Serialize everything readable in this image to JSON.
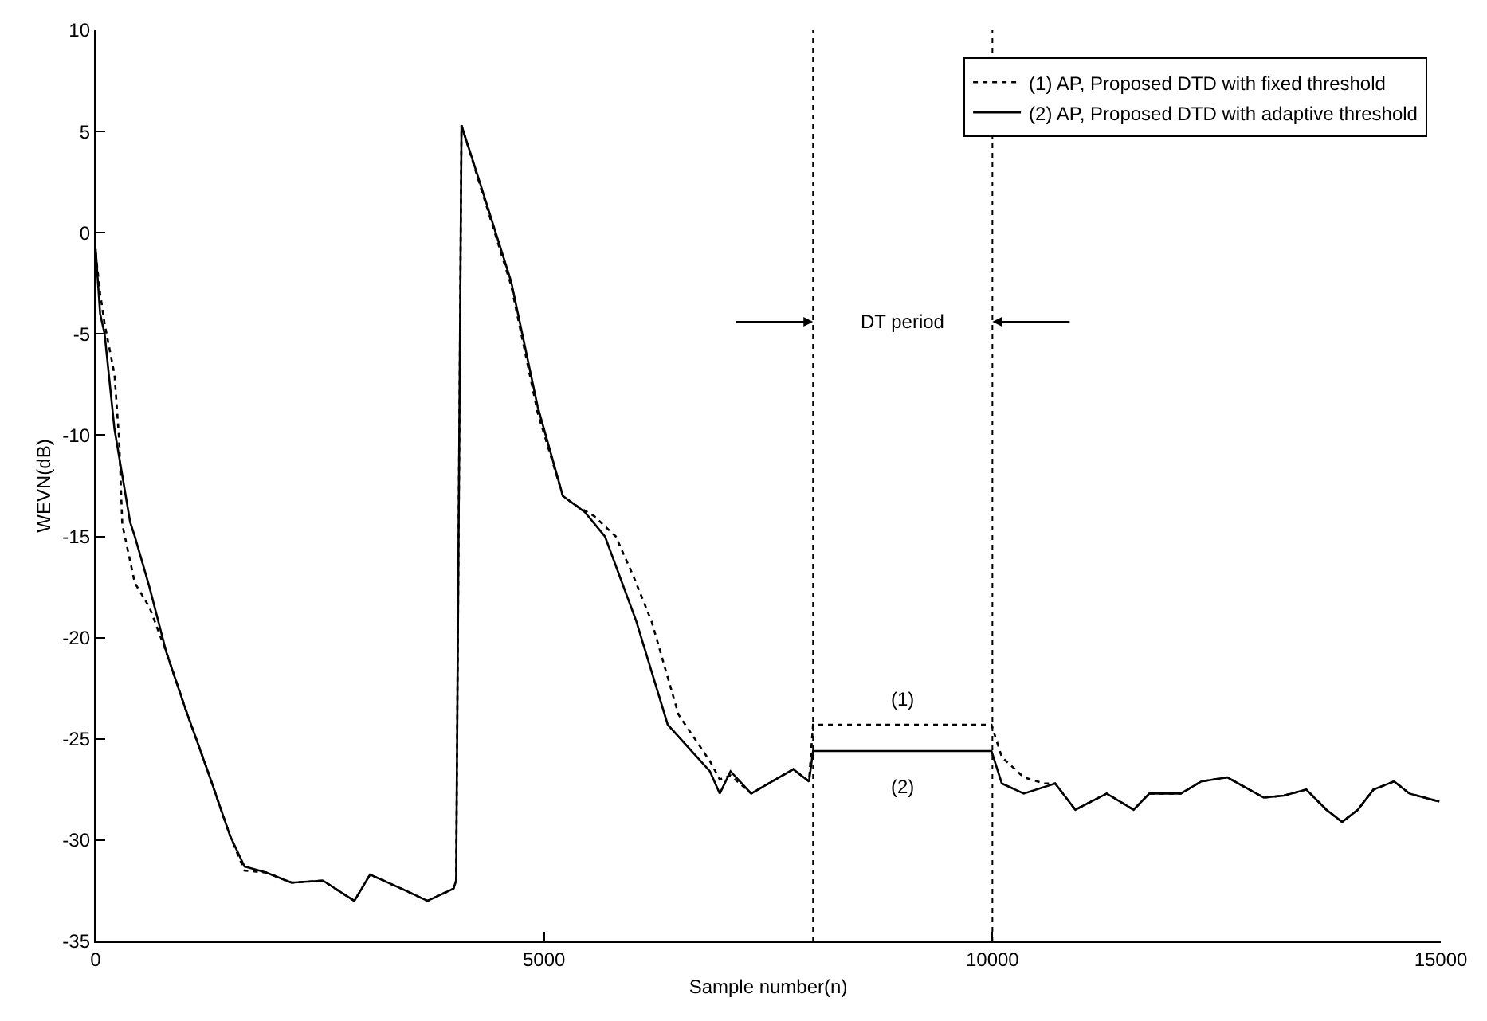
{
  "chart_data": {
    "type": "line",
    "xlabel": "Sample number(n)",
    "ylabel": "WEVN(dB)",
    "xlim": [
      0,
      15000
    ],
    "xticks": [
      0,
      5000,
      10000,
      15000
    ],
    "ylim": [
      -35,
      10
    ],
    "yticks": [
      -35,
      -30,
      -25,
      -20,
      -15,
      -10,
      -5,
      0,
      5,
      10
    ],
    "legend": "top right",
    "marker": "none",
    "series": [
      {
        "name": "(1) AP, Proposed DTD with fixed threshold",
        "color": "#000000",
        "line_style": "dotted",
        "x": [
          0,
          50,
          100,
          210,
          262,
          297,
          437,
          600,
          787,
          1000,
          1259,
          1500,
          1660,
          1900,
          2185,
          2535,
          2885,
          3060,
          3460,
          3700,
          3990,
          4020,
          4080,
          4283,
          4633,
          4930,
          5210,
          5330,
          5560,
          5800,
          6000,
          6200,
          6500,
          6850,
          6960,
          7080,
          7310,
          7780,
          7955,
          8000,
          9990,
          10105,
          10350,
          10580,
          10700,
          10925,
          11275,
          11575,
          11750,
          12100,
          12330,
          12620,
          13025,
          13250,
          13500,
          13725,
          13900,
          14075,
          14250,
          14480,
          14650,
          14985
        ],
        "values": [
          -1,
          -3,
          -4.5,
          -7,
          -10.2,
          -14.4,
          -17.3,
          -18.5,
          -20.7,
          -23.5,
          -26.7,
          -29.8,
          -31.5,
          -31.6,
          -32.1,
          -32,
          -33,
          -31.7,
          -32.5,
          -33,
          -32.4,
          -32,
          5.3,
          2.4,
          -2.6,
          -8.9,
          -13,
          -13.4,
          -14,
          -15,
          -17,
          -19.2,
          -23.8,
          -26.1,
          -27,
          -26.8,
          -27.7,
          -26.5,
          -27.1,
          -24.3,
          -24.3,
          -25.9,
          -26.9,
          -27.2,
          -27.2,
          -28.5,
          -27.7,
          -28.5,
          -27.7,
          -27.7,
          -27.1,
          -26.9,
          -27.9,
          -27.8,
          -27.5,
          -28.5,
          -29.1,
          -28.5,
          -27.5,
          -27.1,
          -27.7,
          -28.1
        ]
      },
      {
        "name": "(2) AP, Proposed DTD with adaptive threshold",
        "color": "#000000",
        "line_style": "solid",
        "x": [
          0,
          50,
          100,
          210,
          385,
          437,
          600,
          787,
          1000,
          1259,
          1500,
          1660,
          1900,
          2185,
          2535,
          2885,
          3060,
          3460,
          3700,
          3990,
          4020,
          4080,
          4283,
          4633,
          4930,
          5210,
          5455,
          5680,
          6030,
          6380,
          6850,
          6960,
          7080,
          7310,
          7780,
          7955,
          8000,
          9990,
          10105,
          10350,
          10700,
          10925,
          11275,
          11575,
          11750,
          12100,
          12330,
          12620,
          13025,
          13250,
          13500,
          13725,
          13900,
          14075,
          14250,
          14480,
          14650,
          14985
        ],
        "values": [
          -0.8,
          -4,
          -5,
          -9.7,
          -14.3,
          -15,
          -17.5,
          -20.7,
          -23.5,
          -26.7,
          -29.8,
          -31.3,
          -31.6,
          -32.1,
          -32,
          -33,
          -31.7,
          -32.5,
          -33,
          -32.4,
          -32,
          5.3,
          2.5,
          -2.4,
          -8.6,
          -13,
          -13.8,
          -15,
          -19.2,
          -24.3,
          -26.6,
          -27.7,
          -26.6,
          -27.7,
          -26.5,
          -27.1,
          -25.6,
          -25.6,
          -27.2,
          -27.7,
          -27.2,
          -28.5,
          -27.7,
          -28.5,
          -27.7,
          -27.7,
          -27.1,
          -26.9,
          -27.9,
          -27.8,
          -27.5,
          -28.5,
          -29.1,
          -28.5,
          -27.5,
          -27.1,
          -27.7,
          -28.1
        ]
      }
    ],
    "ref_lines": [
      {
        "axis": "x",
        "value": 8000,
        "line_style": "dotted",
        "color": "#000000"
      },
      {
        "axis": "x",
        "value": 10000,
        "line_style": "dotted",
        "color": "#000000"
      }
    ],
    "annotations": [
      "DT period",
      "(1)",
      "(2)"
    ]
  }
}
